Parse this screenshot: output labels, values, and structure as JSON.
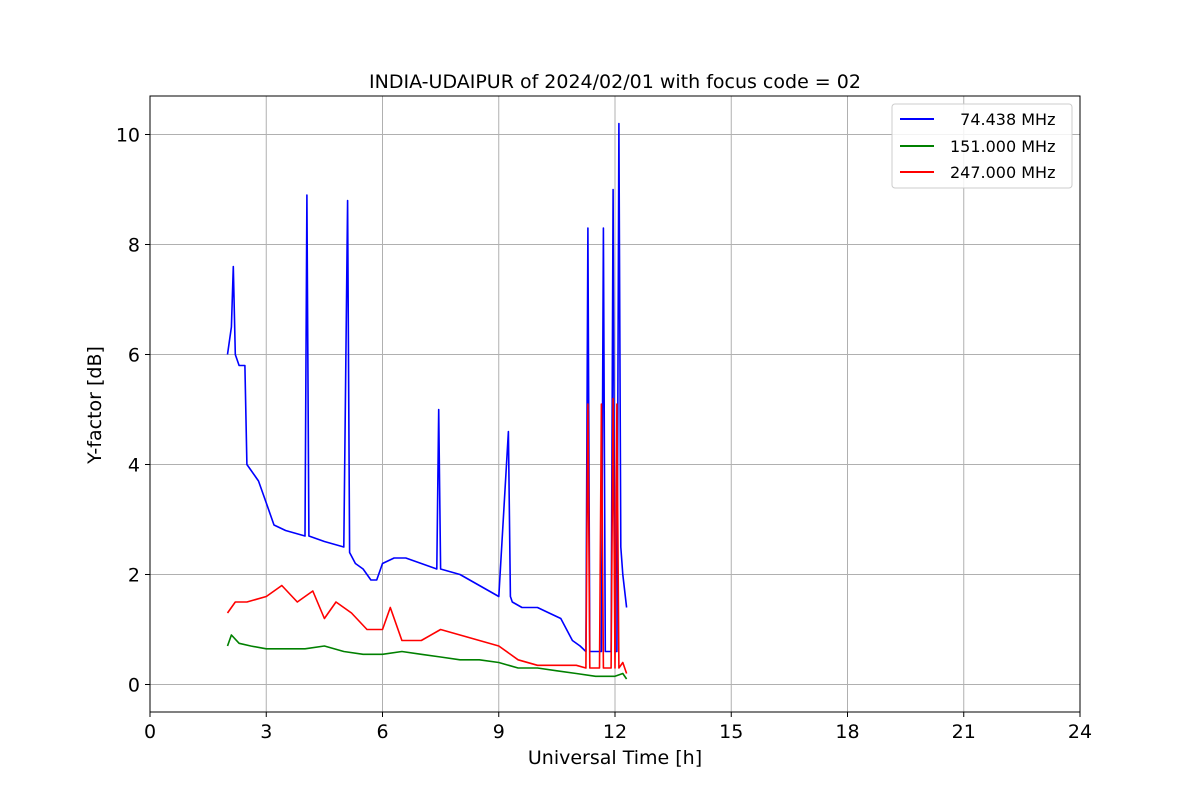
{
  "chart_data": {
    "type": "line",
    "title": "INDIA-UDAIPUR of 2024/02/01 with focus code = 02",
    "xlabel": "Universal Time [h]",
    "ylabel": "Y-factor [dB]",
    "xlim": [
      0,
      24
    ],
    "ylim": [
      -0.5,
      10.7
    ],
    "xticks": [
      "0",
      "3",
      "6",
      "9",
      "12",
      "15",
      "18",
      "21",
      "24"
    ],
    "yticks": [
      "0",
      "2",
      "4",
      "6",
      "8",
      "10"
    ],
    "grid": true,
    "legend_position": "top-right",
    "series": [
      {
        "name": "  74.438 MHz",
        "color": "#0000ff",
        "x": [
          2.0,
          2.1,
          2.15,
          2.2,
          2.3,
          2.45,
          2.5,
          2.6,
          2.8,
          3.0,
          3.2,
          3.5,
          4.0,
          4.05,
          4.1,
          4.5,
          5.0,
          5.1,
          5.15,
          5.3,
          5.5,
          5.7,
          5.85,
          6.0,
          6.3,
          6.6,
          7.0,
          7.4,
          7.45,
          7.5,
          8.0,
          8.5,
          9.0,
          9.25,
          9.3,
          9.35,
          9.6,
          10.0,
          10.3,
          10.6,
          10.9,
          11.1,
          11.25,
          11.3,
          11.35,
          11.5,
          11.65,
          11.7,
          11.75,
          11.9,
          11.95,
          12.0,
          12.05,
          12.1,
          12.15,
          12.2,
          12.3
        ],
        "y": [
          6.0,
          6.5,
          7.6,
          6.0,
          5.8,
          5.8,
          4.0,
          3.9,
          3.7,
          3.3,
          2.9,
          2.8,
          2.7,
          8.9,
          2.7,
          2.6,
          2.5,
          8.8,
          2.4,
          2.2,
          2.1,
          1.9,
          1.9,
          2.2,
          2.3,
          2.3,
          2.2,
          2.1,
          5.0,
          2.1,
          2.0,
          1.8,
          1.6,
          4.6,
          1.6,
          1.5,
          1.4,
          1.4,
          1.3,
          1.2,
          0.8,
          0.7,
          0.6,
          8.3,
          0.6,
          0.6,
          0.6,
          8.3,
          0.6,
          0.6,
          9.0,
          0.6,
          0.6,
          10.2,
          2.5,
          2.0,
          1.4
        ]
      },
      {
        "name": "151.000 MHz",
        "color": "#008000",
        "x": [
          2.0,
          2.1,
          2.3,
          2.6,
          3.0,
          3.5,
          4.0,
          4.5,
          5.0,
          5.5,
          6.0,
          6.5,
          7.0,
          7.5,
          8.0,
          8.5,
          9.0,
          9.5,
          10.0,
          10.5,
          11.0,
          11.5,
          12.0,
          12.2,
          12.3
        ],
        "y": [
          0.7,
          0.9,
          0.75,
          0.7,
          0.65,
          0.65,
          0.65,
          0.7,
          0.6,
          0.55,
          0.55,
          0.6,
          0.55,
          0.5,
          0.45,
          0.45,
          0.4,
          0.3,
          0.3,
          0.25,
          0.2,
          0.15,
          0.15,
          0.2,
          0.1
        ]
      },
      {
        "name": "247.000 MHz",
        "color": "#ff0000",
        "x": [
          2.0,
          2.2,
          2.5,
          3.0,
          3.4,
          3.8,
          4.2,
          4.5,
          4.8,
          5.2,
          5.6,
          6.0,
          6.2,
          6.5,
          7.0,
          7.5,
          8.0,
          8.5,
          9.0,
          9.5,
          10.0,
          10.5,
          11.0,
          11.25,
          11.3,
          11.35,
          11.6,
          11.65,
          11.7,
          11.9,
          11.95,
          12.0,
          12.05,
          12.1,
          12.2,
          12.3
        ],
        "y": [
          1.3,
          1.5,
          1.5,
          1.6,
          1.8,
          1.5,
          1.7,
          1.2,
          1.5,
          1.3,
          1.0,
          1.0,
          1.4,
          0.8,
          0.8,
          1.0,
          0.9,
          0.8,
          0.7,
          0.45,
          0.35,
          0.35,
          0.35,
          0.3,
          5.1,
          0.3,
          0.3,
          5.1,
          0.3,
          0.3,
          5.2,
          0.3,
          5.1,
          0.3,
          0.4,
          0.2
        ]
      }
    ]
  }
}
